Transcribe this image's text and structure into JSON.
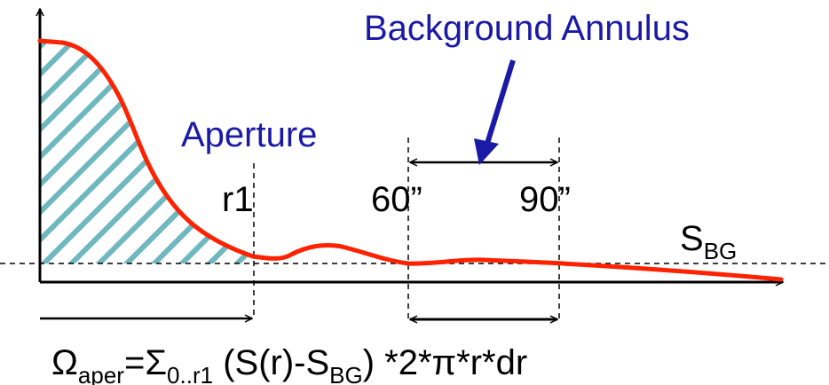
{
  "labels": {
    "background_annulus": "Background Annulus",
    "aperture": "Aperture",
    "r1": "r1",
    "r60": "60”",
    "r90": "90”",
    "sbg_main": "S",
    "sbg_sub": "BG",
    "formula": {
      "omega": "Ω",
      "omega_sub": "aper",
      "eq_sigma": "=Σ",
      "sigma_sub": "0..r1",
      "paren_open": " (S(r)-S",
      "paren_sub": "BG",
      "rest": ") *2*π*r*dr"
    }
  },
  "colors": {
    "curve": "#ff2200",
    "hatch": "#6fb8c0",
    "annotation_blue": "#1a1aa6",
    "axes": "#000000"
  }
}
